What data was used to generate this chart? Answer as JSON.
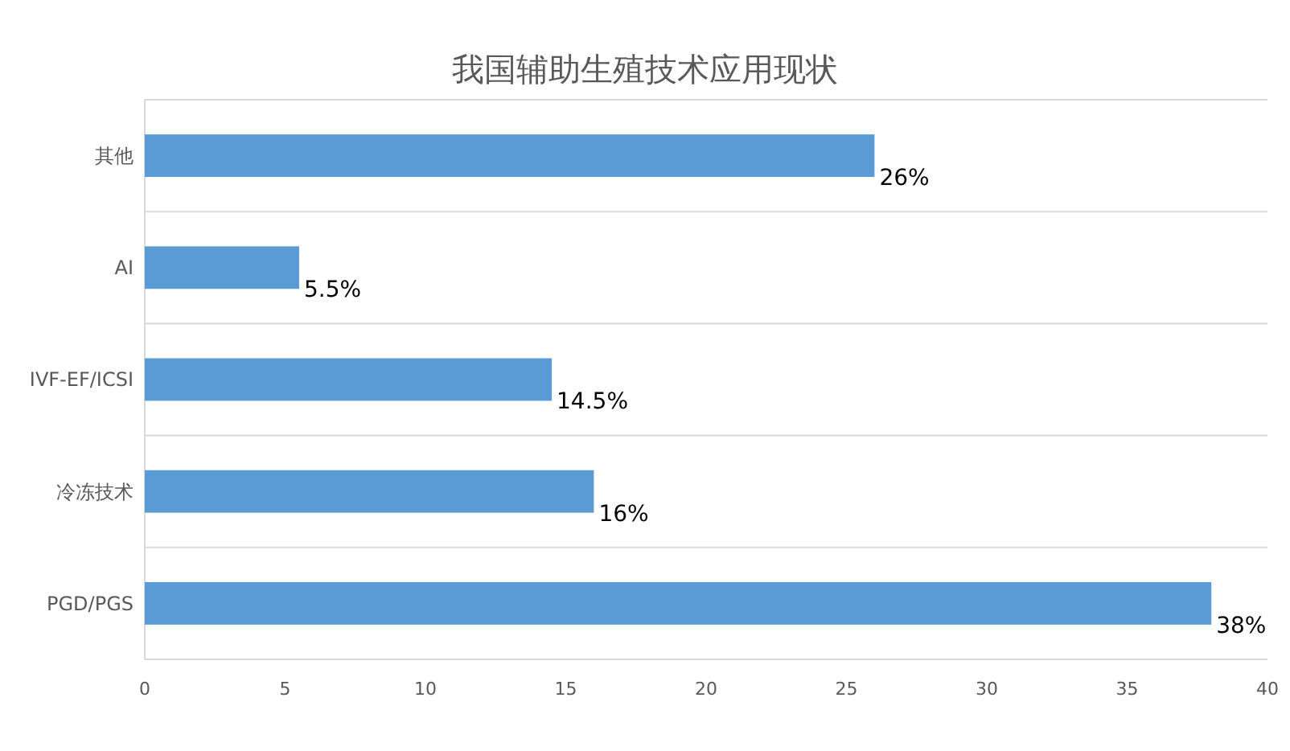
{
  "chart_data": {
    "type": "bar",
    "orientation": "horizontal",
    "title": "我国辅助生殖技术应用现状",
    "categories": [
      "其他",
      "AI",
      "IVF-EF/ICSI",
      "冷冻技术",
      "PGD/PGS"
    ],
    "values": [
      26,
      5.5,
      14.5,
      16,
      38
    ],
    "value_labels": [
      "26%",
      "5.5%",
      "14.5%",
      "16%",
      "38%"
    ],
    "color": "#5b9bd5",
    "xlim": [
      0,
      40
    ],
    "xticks": [
      0,
      5,
      10,
      15,
      20,
      25,
      30,
      35,
      40
    ],
    "grid": "y"
  }
}
